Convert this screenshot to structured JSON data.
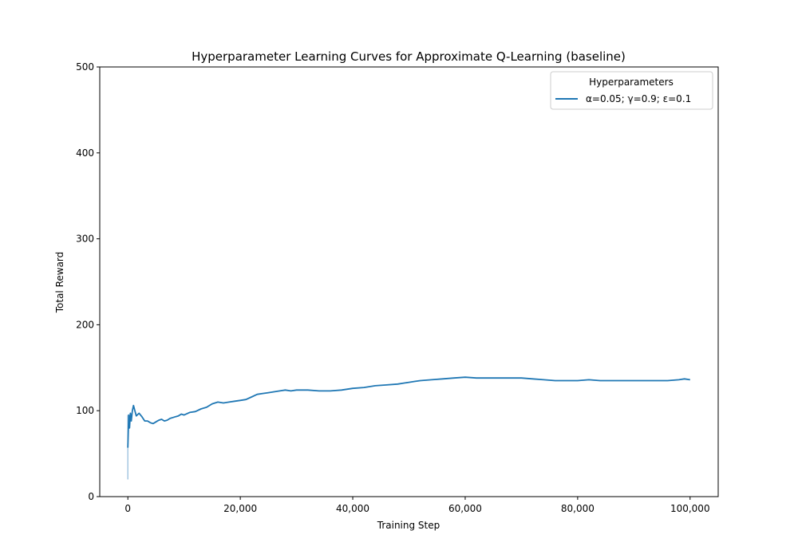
{
  "chart_data": {
    "type": "line",
    "title": "Hyperparameter Learning Curves for Approximate Q-Learning (baseline)",
    "xlabel": "Training Step",
    "ylabel": "Total Reward",
    "xlim": [
      -5000,
      105000
    ],
    "ylim": [
      0,
      500
    ],
    "xticks": [
      0,
      20000,
      40000,
      60000,
      80000,
      100000
    ],
    "xtick_labels": [
      "0",
      "20,000",
      "40,000",
      "60,000",
      "80,000",
      "100,000"
    ],
    "yticks": [
      0,
      100,
      200,
      300,
      400,
      500
    ],
    "ytick_labels": [
      "0",
      "100",
      "200",
      "300",
      "400",
      "500"
    ],
    "grid": false,
    "legend": {
      "title": "Hyperparameters",
      "placement": "upper right"
    },
    "series": [
      {
        "name": "α=0.05; γ=0.9; ε=0.1",
        "color": "#1f77b4",
        "band_color": "#a6c8e2",
        "x": [
          0,
          150,
          300,
          450,
          600,
          800,
          1000,
          1200,
          1500,
          2000,
          2500,
          3000,
          3500,
          4000,
          4500,
          5000,
          5500,
          6000,
          6500,
          7000,
          7500,
          8000,
          8500,
          9000,
          9500,
          10000,
          11000,
          12000,
          13000,
          14000,
          15000,
          16000,
          17000,
          18000,
          19000,
          20000,
          21000,
          22000,
          23000,
          24000,
          25000,
          26000,
          27000,
          28000,
          29000,
          30000,
          32000,
          34000,
          36000,
          38000,
          40000,
          42000,
          44000,
          46000,
          48000,
          50000,
          51000,
          52000,
          54000,
          56000,
          58000,
          60000,
          62000,
          64000,
          66000,
          68000,
          70000,
          72000,
          74000,
          76000,
          78000,
          80000,
          82000,
          84000,
          86000,
          88000,
          90000,
          92000,
          94000,
          96000,
          98000,
          99000,
          100000
        ],
        "y": [
          57,
          95,
          80,
          97,
          88,
          100,
          106,
          101,
          94,
          97,
          93,
          88,
          88,
          86,
          85,
          87,
          89,
          90,
          88,
          89,
          91,
          92,
          93,
          94,
          96,
          95,
          98,
          99,
          102,
          104,
          108,
          110,
          109,
          110,
          111,
          112,
          113,
          116,
          119,
          120,
          121,
          122,
          123,
          124,
          123,
          124,
          124,
          123,
          123,
          124,
          126,
          127,
          129,
          130,
          131,
          133,
          134,
          135,
          136,
          137,
          138,
          139,
          138,
          138,
          138,
          138,
          138,
          137,
          136,
          135,
          135,
          135,
          136,
          135,
          135,
          135,
          135,
          135,
          135,
          135,
          136,
          137,
          136
        ],
        "band": [
          {
            "x": 0,
            "low": 20,
            "high": 95
          }
        ]
      }
    ]
  }
}
